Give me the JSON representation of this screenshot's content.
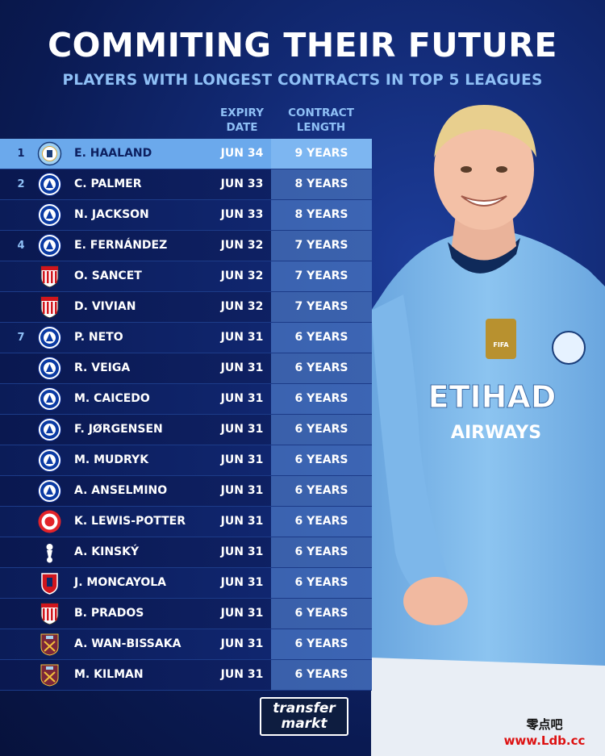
{
  "title": "COMMITING THEIR FUTURE",
  "subtitle": "PLAYERS WITH LONGEST CONTRACTS IN TOP 5 LEAGUES",
  "columns": {
    "expiry": "EXPIRY\nDATE",
    "expiry_l1": "EXPIRY",
    "expiry_l2": "DATE",
    "length_l1": "CONTRACT",
    "length_l2": "LENGTH"
  },
  "rows": [
    {
      "rank": "1",
      "club": "man-city",
      "name": "E. HAALAND",
      "expiry": "JUN 34",
      "length": "9 YEARS"
    },
    {
      "rank": "2",
      "club": "chelsea",
      "name": "C. PALMER",
      "expiry": "JUN 33",
      "length": "8 YEARS"
    },
    {
      "rank": "",
      "club": "chelsea",
      "name": "N. JACKSON",
      "expiry": "JUN 33",
      "length": "8 YEARS"
    },
    {
      "rank": "4",
      "club": "chelsea",
      "name": "E. FERNÁNDEZ",
      "expiry": "JUN 32",
      "length": "7 YEARS"
    },
    {
      "rank": "",
      "club": "athletic-bilbao",
      "name": "O. SANCET",
      "expiry": "JUN 32",
      "length": "7 YEARS"
    },
    {
      "rank": "",
      "club": "athletic-bilbao",
      "name": "D. VIVIAN",
      "expiry": "JUN 32",
      "length": "7 YEARS"
    },
    {
      "rank": "7",
      "club": "chelsea",
      "name": "P. NETO",
      "expiry": "JUN 31",
      "length": "6 YEARS"
    },
    {
      "rank": "",
      "club": "chelsea",
      "name": "R. VEIGA",
      "expiry": "JUN 31",
      "length": "6 YEARS"
    },
    {
      "rank": "",
      "club": "chelsea",
      "name": "M. CAICEDO",
      "expiry": "JUN 31",
      "length": "6 YEARS"
    },
    {
      "rank": "",
      "club": "chelsea",
      "name": "F. JØRGENSEN",
      "expiry": "JUN 31",
      "length": "6 YEARS"
    },
    {
      "rank": "",
      "club": "chelsea",
      "name": "M. MUDRYK",
      "expiry": "JUN 31",
      "length": "6 YEARS"
    },
    {
      "rank": "",
      "club": "chelsea",
      "name": "A. ANSELMINO",
      "expiry": "JUN 31",
      "length": "6 YEARS"
    },
    {
      "rank": "",
      "club": "brentford",
      "name": "K. LEWIS-POTTER",
      "expiry": "JUN 31",
      "length": "6 YEARS"
    },
    {
      "rank": "",
      "club": "tottenham",
      "name": "A. KINSKÝ",
      "expiry": "JUN 31",
      "length": "6 YEARS"
    },
    {
      "rank": "",
      "club": "osasuna",
      "name": "J. MONCAYOLA",
      "expiry": "JUN 31",
      "length": "6 YEARS"
    },
    {
      "rank": "",
      "club": "athletic-bilbao",
      "name": "B. PRADOS",
      "expiry": "JUN 31",
      "length": "6 YEARS"
    },
    {
      "rank": "",
      "club": "west-ham",
      "name": "A. WAN-BISSAKA",
      "expiry": "JUN 31",
      "length": "6 YEARS"
    },
    {
      "rank": "",
      "club": "west-ham",
      "name": "M. KILMAN",
      "expiry": "JUN 31",
      "length": "6 YEARS"
    }
  ],
  "player_shirt": {
    "sponsor_l1": "ETIHAD",
    "sponsor_l2": "AIRWAYS",
    "badge_top": "FIFA"
  },
  "logo": {
    "line1": "transfer",
    "line2": "markt"
  },
  "watermark": {
    "cn": "零点吧",
    "url": "www.Ldb.cc"
  },
  "colors": {
    "accent": "#8fc0f6",
    "highlight_row": "#6ba9ec",
    "background": "#0a1a52",
    "shirt": "#7eb8ea"
  }
}
